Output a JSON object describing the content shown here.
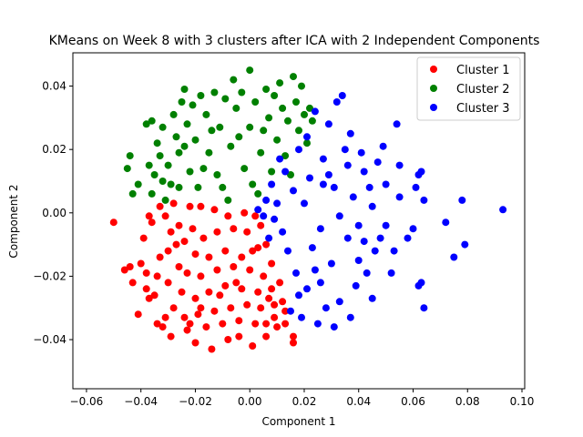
{
  "chart_data": {
    "type": "scatter",
    "title": "KMeans on Week 8 with 3 clusters after ICA with 2 Independent Components",
    "xlabel": "Component 1",
    "ylabel": "Component 2",
    "xlim": [
      -0.065,
      0.101
    ],
    "ylim": [
      -0.0555,
      0.0505
    ],
    "xticks": [
      -0.06,
      -0.04,
      -0.02,
      0.0,
      0.02,
      0.04,
      0.06,
      0.08,
      0.1
    ],
    "xtick_labels": [
      "−0.06",
      "−0.04",
      "−0.02",
      "0.00",
      "0.02",
      "0.04",
      "0.06",
      "0.08",
      "0.10"
    ],
    "yticks": [
      -0.04,
      -0.02,
      0.0,
      0.02,
      0.04
    ],
    "ytick_labels": [
      "−0.04",
      "−0.02",
      "0.00",
      "0.02",
      "0.04"
    ],
    "grid": false,
    "legend_position": "top-right",
    "series": [
      {
        "name": "Cluster 1",
        "color": "#ff0000",
        "points": [
          [
            -0.05,
            -0.003
          ],
          [
            -0.046,
            -0.018
          ],
          [
            -0.044,
            -0.017
          ],
          [
            -0.043,
            -0.022
          ],
          [
            -0.041,
            -0.032
          ],
          [
            -0.04,
            -0.016
          ],
          [
            -0.038,
            -0.019
          ],
          [
            -0.039,
            -0.008
          ],
          [
            -0.037,
            -0.001
          ],
          [
            -0.036,
            -0.003
          ],
          [
            -0.038,
            -0.024
          ],
          [
            -0.037,
            -0.027
          ],
          [
            -0.035,
            -0.026
          ],
          [
            -0.034,
            -0.02
          ],
          [
            -0.033,
            -0.014
          ],
          [
            -0.034,
            -0.035
          ],
          [
            -0.032,
            -0.036
          ],
          [
            -0.031,
            -0.033
          ],
          [
            -0.029,
            -0.039
          ],
          [
            -0.028,
            -0.03
          ],
          [
            -0.03,
            -0.022
          ],
          [
            -0.03,
            -0.012
          ],
          [
            -0.029,
            -0.006
          ],
          [
            -0.031,
            -0.001
          ],
          [
            -0.033,
            0.002
          ],
          [
            -0.028,
            0.003
          ],
          [
            -0.027,
            -0.01
          ],
          [
            -0.026,
            -0.017
          ],
          [
            -0.025,
            -0.025
          ],
          [
            -0.024,
            -0.033
          ],
          [
            -0.023,
            -0.037
          ],
          [
            -0.02,
            -0.041
          ],
          [
            -0.014,
            -0.043
          ],
          [
            -0.008,
            -0.04
          ],
          [
            -0.004,
            -0.039
          ],
          [
            0.001,
            -0.042
          ],
          [
            0.006,
            -0.039
          ],
          [
            0.01,
            -0.036
          ],
          [
            0.016,
            -0.041
          ],
          [
            0.016,
            -0.039
          ],
          [
            0.013,
            -0.035
          ],
          [
            0.009,
            -0.033
          ],
          [
            0.006,
            -0.035
          ],
          [
            0.012,
            -0.028
          ],
          [
            0.011,
            -0.022
          ],
          [
            0.008,
            -0.016
          ],
          [
            0.006,
            -0.01
          ],
          [
            0.004,
            -0.004
          ],
          [
            0.002,
            -0.001
          ],
          [
            -0.002,
            0.0
          ],
          [
            -0.008,
            -0.001
          ],
          [
            -0.013,
            0.001
          ],
          [
            -0.018,
            0.002
          ],
          [
            -0.022,
            0.002
          ],
          [
            -0.021,
            -0.005
          ],
          [
            -0.017,
            -0.008
          ],
          [
            -0.012,
            -0.006
          ],
          [
            -0.006,
            -0.005
          ],
          [
            -0.001,
            -0.006
          ],
          [
            0.003,
            -0.011
          ],
          [
            -0.003,
            -0.014
          ],
          [
            -0.009,
            -0.012
          ],
          [
            -0.015,
            -0.014
          ],
          [
            -0.02,
            -0.013
          ],
          [
            -0.023,
            -0.019
          ],
          [
            -0.018,
            -0.02
          ],
          [
            -0.012,
            -0.018
          ],
          [
            -0.006,
            -0.017
          ],
          [
            0.0,
            -0.018
          ],
          [
            0.005,
            -0.02
          ],
          [
            0.008,
            -0.024
          ],
          [
            0.003,
            -0.025
          ],
          [
            -0.003,
            -0.024
          ],
          [
            -0.009,
            -0.023
          ],
          [
            -0.015,
            -0.025
          ],
          [
            -0.02,
            -0.027
          ],
          [
            -0.019,
            -0.032
          ],
          [
            -0.013,
            -0.031
          ],
          [
            -0.007,
            -0.03
          ],
          [
            -0.001,
            -0.029
          ],
          [
            0.004,
            -0.03
          ],
          [
            0.009,
            -0.029
          ],
          [
            0.013,
            -0.031
          ],
          [
            -0.016,
            -0.036
          ],
          [
            -0.01,
            -0.035
          ],
          [
            -0.004,
            -0.034
          ],
          [
            0.002,
            -0.035
          ],
          [
            -0.024,
            -0.009
          ],
          [
            -0.026,
            -0.004
          ],
          [
            -0.011,
            -0.026
          ],
          [
            0.001,
            -0.012
          ],
          [
            -0.005,
            -0.022
          ],
          [
            0.007,
            -0.027
          ],
          [
            -0.018,
            -0.03
          ],
          [
            -0.022,
            -0.035
          ]
        ]
      },
      {
        "name": "Cluster 2",
        "color": "#008000",
        "points": [
          [
            -0.045,
            0.014
          ],
          [
            -0.044,
            0.018
          ],
          [
            -0.043,
            0.006
          ],
          [
            -0.041,
            0.009
          ],
          [
            -0.038,
            0.028
          ],
          [
            -0.036,
            0.029
          ],
          [
            -0.037,
            0.015
          ],
          [
            -0.036,
            0.006
          ],
          [
            -0.035,
            0.012
          ],
          [
            -0.034,
            0.022
          ],
          [
            -0.033,
            0.018
          ],
          [
            -0.032,
            0.027
          ],
          [
            -0.032,
            0.01
          ],
          [
            -0.031,
            0.004
          ],
          [
            -0.03,
            0.015
          ],
          [
            -0.028,
            0.031
          ],
          [
            -0.027,
            0.024
          ],
          [
            -0.026,
            0.019
          ],
          [
            -0.026,
            0.008
          ],
          [
            -0.025,
            0.035
          ],
          [
            -0.024,
            0.039
          ],
          [
            -0.023,
            0.028
          ],
          [
            -0.022,
            0.013
          ],
          [
            -0.021,
            0.034
          ],
          [
            -0.02,
            0.023
          ],
          [
            -0.019,
            0.008
          ],
          [
            -0.018,
            0.037
          ],
          [
            -0.016,
            0.031
          ],
          [
            -0.015,
            0.019
          ],
          [
            -0.013,
            0.038
          ],
          [
            -0.012,
            0.012
          ],
          [
            -0.011,
            0.027
          ],
          [
            -0.009,
            0.036
          ],
          [
            -0.008,
            0.004
          ],
          [
            -0.007,
            0.021
          ],
          [
            -0.005,
            0.033
          ],
          [
            -0.003,
            0.038
          ],
          [
            -0.002,
            0.014
          ],
          [
            0.0,
            0.027
          ],
          [
            0.0,
            0.045
          ],
          [
            0.002,
            0.035
          ],
          [
            0.003,
            0.006
          ],
          [
            0.004,
            0.019
          ],
          [
            0.006,
            0.039
          ],
          [
            0.007,
            0.03
          ],
          [
            0.008,
            0.013
          ],
          [
            0.009,
            0.037
          ],
          [
            0.01,
            0.023
          ],
          [
            0.012,
            0.033
          ],
          [
            0.013,
            0.018
          ],
          [
            0.014,
            0.029
          ],
          [
            0.015,
            0.012
          ],
          [
            0.016,
            0.043
          ],
          [
            0.017,
            0.035
          ],
          [
            0.018,
            0.026
          ],
          [
            0.019,
            0.04
          ],
          [
            0.02,
            0.031
          ],
          [
            0.021,
            0.022
          ],
          [
            0.022,
            0.033
          ],
          [
            0.023,
            0.029
          ],
          [
            0.011,
            0.041
          ],
          [
            -0.004,
            0.024
          ],
          [
            -0.017,
            0.014
          ],
          [
            -0.024,
            0.021
          ],
          [
            -0.029,
            0.009
          ],
          [
            -0.01,
            0.008
          ],
          [
            0.001,
            0.009
          ],
          [
            -0.014,
            0.026
          ],
          [
            0.005,
            0.026
          ],
          [
            -0.006,
            0.042
          ]
        ]
      },
      {
        "name": "Cluster 3",
        "color": "#0000ff",
        "points": [
          [
            0.093,
            0.001
          ],
          [
            0.078,
            0.004
          ],
          [
            0.079,
            -0.01
          ],
          [
            0.075,
            -0.014
          ],
          [
            0.072,
            -0.003
          ],
          [
            0.064,
            -0.03
          ],
          [
            0.063,
            -0.022
          ],
          [
            0.062,
            -0.023
          ],
          [
            0.064,
            0.004
          ],
          [
            0.063,
            0.013
          ],
          [
            0.062,
            0.012
          ],
          [
            0.061,
            0.008
          ],
          [
            0.06,
            -0.005
          ],
          [
            0.058,
            -0.008
          ],
          [
            0.055,
            0.015
          ],
          [
            0.055,
            0.005
          ],
          [
            0.054,
            0.028
          ],
          [
            0.053,
            -0.012
          ],
          [
            0.052,
            -0.019
          ],
          [
            0.05,
            -0.004
          ],
          [
            0.05,
            0.009
          ],
          [
            0.049,
            0.021
          ],
          [
            0.048,
            -0.008
          ],
          [
            0.047,
            0.016
          ],
          [
            0.046,
            -0.012
          ],
          [
            0.045,
            -0.027
          ],
          [
            0.045,
            0.002
          ],
          [
            0.044,
            0.008
          ],
          [
            0.043,
            -0.019
          ],
          [
            0.042,
            0.013
          ],
          [
            0.041,
            0.019
          ],
          [
            0.04,
            -0.004
          ],
          [
            0.04,
            -0.015
          ],
          [
            0.039,
            -0.023
          ],
          [
            0.038,
            0.005
          ],
          [
            0.037,
            -0.033
          ],
          [
            0.036,
            0.015
          ],
          [
            0.036,
            -0.008
          ],
          [
            0.035,
            0.02
          ],
          [
            0.034,
            0.037
          ],
          [
            0.033,
            -0.028
          ],
          [
            0.032,
            0.035
          ],
          [
            0.031,
            -0.036
          ],
          [
            0.031,
            0.008
          ],
          [
            0.03,
            -0.016
          ],
          [
            0.029,
            0.028
          ],
          [
            0.028,
            -0.03
          ],
          [
            0.027,
            0.017
          ],
          [
            0.026,
            -0.005
          ],
          [
            0.025,
            -0.035
          ],
          [
            0.024,
            0.032
          ],
          [
            0.023,
            -0.011
          ],
          [
            0.022,
            0.011
          ],
          [
            0.021,
            -0.024
          ],
          [
            0.02,
            0.003
          ],
          [
            0.019,
            -0.033
          ],
          [
            0.018,
            0.02
          ],
          [
            0.017,
            -0.019
          ],
          [
            0.016,
            0.007
          ],
          [
            0.015,
            -0.031
          ],
          [
            0.014,
            -0.012
          ],
          [
            0.013,
            0.013
          ],
          [
            0.012,
            -0.006
          ],
          [
            0.011,
            0.017
          ],
          [
            0.01,
            0.003
          ],
          [
            0.009,
            -0.002
          ],
          [
            0.008,
            0.009
          ],
          [
            0.007,
            -0.008
          ],
          [
            0.006,
            0.004
          ],
          [
            0.005,
            -0.001
          ],
          [
            0.003,
            0.001
          ],
          [
            0.027,
            0.009
          ],
          [
            0.024,
            -0.018
          ],
          [
            0.033,
            -0.001
          ],
          [
            0.037,
            0.025
          ],
          [
            0.042,
            -0.009
          ],
          [
            0.018,
            -0.026
          ],
          [
            0.021,
            0.024
          ],
          [
            0.029,
            0.012
          ],
          [
            0.026,
            -0.022
          ]
        ]
      }
    ]
  }
}
